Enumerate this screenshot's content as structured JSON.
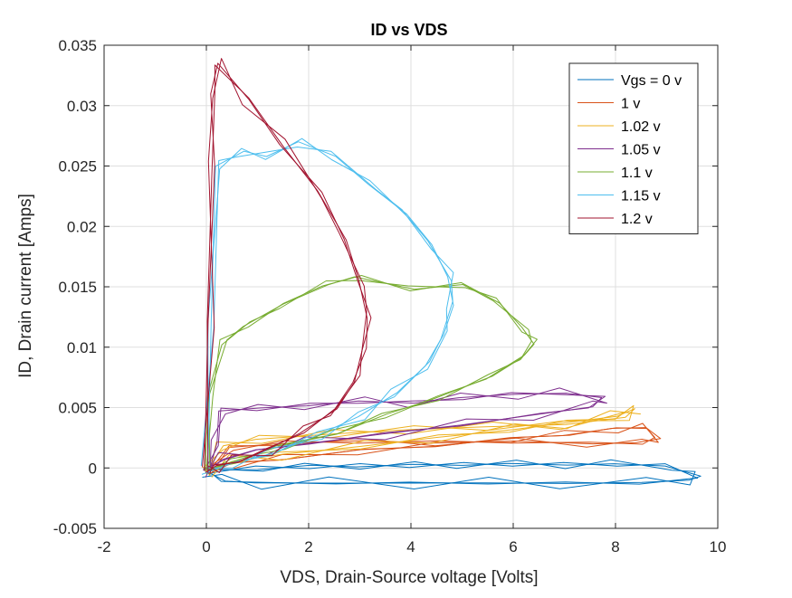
{
  "chart_data": {
    "type": "line",
    "title": "ID vs VDS",
    "xlabel": "VDS, Drain-Source voltage [Volts]",
    "ylabel": "ID, Drain current [Amps]",
    "xlim": [
      -2,
      10
    ],
    "ylim": [
      -0.005,
      0.035
    ],
    "xticks": [
      "-2",
      "0",
      "2",
      "4",
      "6",
      "8",
      "10"
    ],
    "yticks": [
      "-0.005",
      "0",
      "0.005",
      "0.01",
      "0.015",
      "0.02",
      "0.025",
      "0.03",
      "0.035"
    ],
    "grid": true,
    "legend_position": "top-right",
    "series": [
      {
        "name": "Vgs = 0 v",
        "color": "#0072BD",
        "x": [
          0,
          1,
          2,
          3,
          4,
          5,
          6,
          7,
          8,
          9,
          9.6,
          9.5,
          8.5,
          7,
          5.5,
          4,
          2.5,
          1,
          0.3,
          0
        ],
        "y": [
          -0.0003,
          0.0,
          0.0001,
          0.0002,
          0.0002,
          0.0003,
          0.0003,
          0.0003,
          0.0003,
          0.0002,
          -0.0007,
          -0.001,
          -0.0012,
          -0.0013,
          -0.0012,
          -0.0013,
          -0.0012,
          -0.0013,
          -0.001,
          -0.0003
        ]
      },
      {
        "name": "1 v",
        "color": "#D95319",
        "x": [
          0,
          0.5,
          1.5,
          3,
          4.5,
          6,
          7,
          8,
          8.6,
          8.8,
          8.5,
          7.5,
          6,
          4.5,
          3,
          1.5,
          0.5,
          0
        ],
        "y": [
          -0.0003,
          0.0003,
          0.0008,
          0.0014,
          0.0019,
          0.0024,
          0.0028,
          0.0032,
          0.0034,
          0.0024,
          0.0021,
          0.002,
          0.0022,
          0.0021,
          0.0022,
          0.0021,
          0.0016,
          -0.0003
        ]
      },
      {
        "name": "1.02 v",
        "color": "#EDB120",
        "x": [
          0,
          0.5,
          1.5,
          3,
          4.5,
          6,
          7,
          8,
          8.4,
          8.2,
          7,
          5.5,
          4,
          2.5,
          1,
          0.3,
          0
        ],
        "y": [
          -0.0003,
          0.0006,
          0.0011,
          0.0018,
          0.0025,
          0.0032,
          0.0037,
          0.0043,
          0.0049,
          0.0042,
          0.0036,
          0.0034,
          0.0032,
          0.0028,
          0.0024,
          0.0018,
          -0.0003
        ]
      },
      {
        "name": "1.05 v",
        "color": "#7E2F8E",
        "x": [
          0,
          0.2,
          0.3,
          1,
          2,
          3,
          4,
          5,
          6,
          7,
          7.8,
          7.5,
          6.5,
          5,
          3.5,
          2,
          1,
          0.3,
          0
        ],
        "y": [
          -0.0003,
          0.002,
          0.0048,
          0.0049,
          0.0052,
          0.0055,
          0.0054,
          0.0058,
          0.0061,
          0.0062,
          0.0058,
          0.0051,
          0.0044,
          0.0036,
          0.0028,
          0.0021,
          0.0014,
          0.0008,
          -0.0003
        ]
      },
      {
        "name": "1.1 v",
        "color": "#77AC30",
        "x": [
          0,
          0.1,
          0.3,
          0.8,
          1.5,
          2.3,
          3,
          4,
          5,
          5.7,
          6.2,
          6.4,
          6.2,
          5.5,
          4.5,
          3.5,
          2.5,
          1.5,
          0.5,
          0
        ],
        "y": [
          -0.0003,
          0.006,
          0.0105,
          0.0118,
          0.0135,
          0.0152,
          0.0158,
          0.0148,
          0.0152,
          0.0138,
          0.0115,
          0.0104,
          0.0092,
          0.0075,
          0.0058,
          0.0043,
          0.003,
          0.0017,
          0.0006,
          -0.0003
        ]
      },
      {
        "name": "1.15 v",
        "color": "#4DBEEE",
        "x": [
          0,
          0.1,
          0.2,
          0.7,
          1.2,
          1.8,
          2.5,
          3.2,
          3.9,
          4.4,
          4.75,
          4.8,
          4.65,
          4.3,
          3.7,
          3,
          2.2,
          1.3,
          0.5,
          0
        ],
        "y": [
          -0.0003,
          0.012,
          0.025,
          0.0262,
          0.0258,
          0.027,
          0.0258,
          0.0235,
          0.021,
          0.0185,
          0.0158,
          0.0135,
          0.011,
          0.0085,
          0.0062,
          0.0043,
          0.0027,
          0.0013,
          0.0003,
          -0.0003
        ]
      },
      {
        "name": "1.2 v",
        "color": "#A2142F",
        "x": [
          0,
          0.05,
          0.1,
          0.15,
          0.2,
          0.8,
          1.5,
          2.2,
          2.7,
          3.0,
          3.15,
          3.1,
          2.9,
          2.5,
          1.9,
          1.2,
          0.6,
          0.2,
          0
        ],
        "y": [
          -0.0003,
          0.012,
          0.025,
          0.031,
          0.0335,
          0.0305,
          0.0268,
          0.0228,
          0.019,
          0.0155,
          0.0125,
          0.0098,
          0.0072,
          0.0048,
          0.003,
          0.0015,
          0.0006,
          0.0001,
          -0.0003
        ]
      }
    ]
  }
}
